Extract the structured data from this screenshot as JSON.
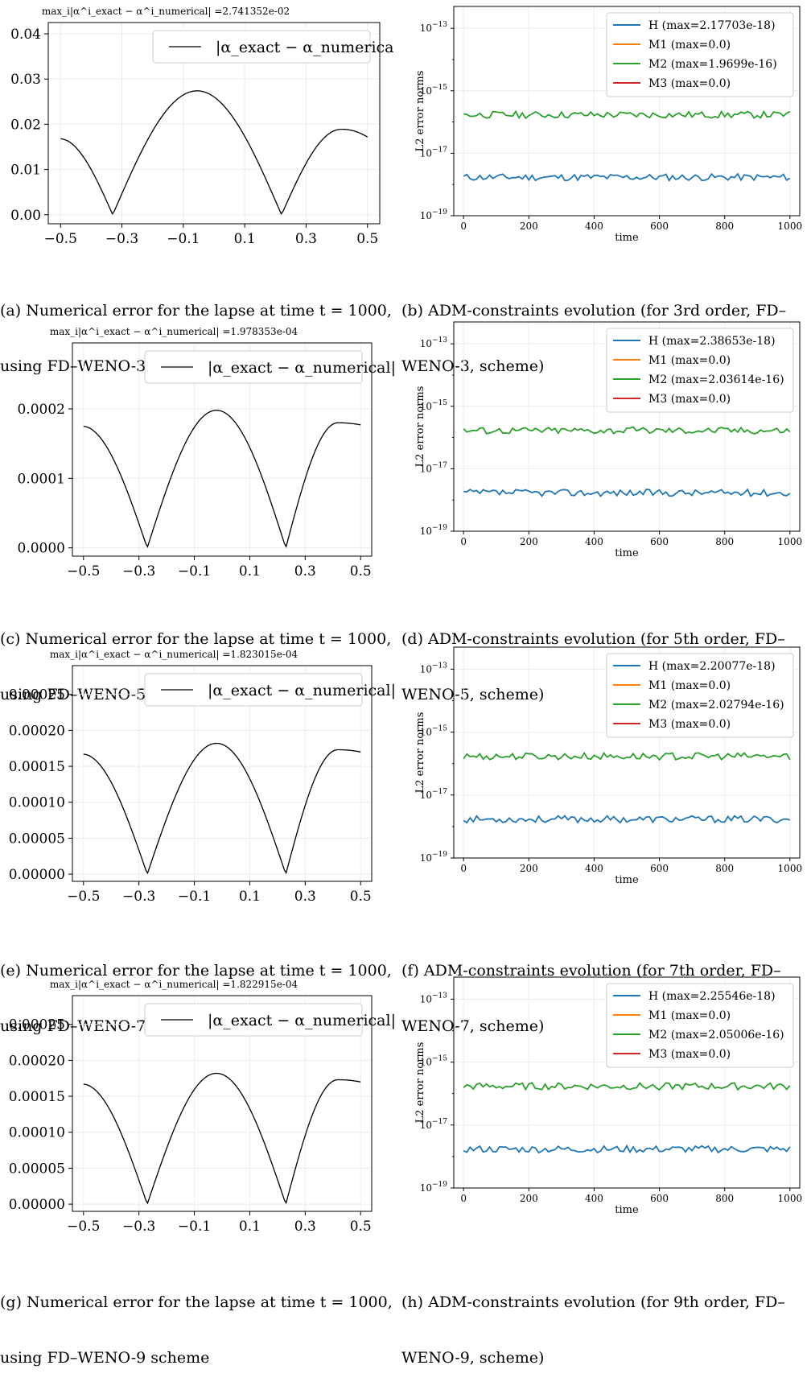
{
  "figures": [
    {
      "id": "a",
      "caption_lines": [
        "(a) Numerical error for the lapse at time t = 1000,",
        "using FD–WENO-3 scheme"
      ],
      "caption_right_lines": [
        "(b) ADM-constraints evolution (for 3rd order, FD–",
        "WENO-3, scheme)"
      ]
    },
    {
      "id": "c",
      "caption_lines": [
        "(c) Numerical error for the lapse at time t = 1000,",
        "using FD–WENO-5 scheme"
      ],
      "caption_right_lines": [
        "(d) ADM-constraints evolution (for 5th order, FD–",
        "WENO-5, scheme)"
      ]
    },
    {
      "id": "e",
      "caption_lines": [
        "(e) Numerical error for the lapse at time t = 1000,",
        "using FD–WENO-7 scheme"
      ],
      "caption_right_lines": [
        "(f) ADM-constraints evolution (for 7th order, FD–",
        "WENO-7, scheme)"
      ]
    },
    {
      "id": "g",
      "caption_lines": [
        "(g) Numerical error for the lapse at time t = 1000,",
        "using FD–WENO-9 scheme"
      ],
      "caption_right_lines": [
        "(h) ADM-constraints evolution (for 9th order, FD–",
        "WENO-9, scheme)"
      ]
    }
  ],
  "chart_data": [
    {
      "panel": "a",
      "type": "line",
      "title": "max_i|α^i_exact − α^i_numerical| =2.741352e-02",
      "legend": [
        "|α_exact − α_numerical|"
      ],
      "legend_position": "top-right",
      "xticks": [
        "−0.5",
        "−0.3",
        "−0.1",
        "0.1",
        "0.3",
        "0.5"
      ],
      "yticks": [
        "0.00",
        "0.01",
        "0.02",
        "0.03",
        "0.04"
      ],
      "xlim": [
        -0.54,
        0.54
      ],
      "ylim": [
        -0.002,
        0.0425
      ],
      "grid": true,
      "series": [
        {
          "x": [
            -0.5,
            -0.4,
            -0.33,
            -0.2,
            -0.05,
            0.1,
            0.22,
            0.35,
            0.44,
            0.5
          ],
          "y": [
            0.0168,
            0.0098,
            0.0,
            0.0174,
            0.0274,
            0.0174,
            0.0008,
            0.0148,
            0.0189,
            0.0172
          ]
        }
      ]
    },
    {
      "panel": "b",
      "type": "line",
      "xlabel": "time",
      "ylabel": "L2 error norms",
      "xticks": [
        "0",
        "200",
        "400",
        "600",
        "800",
        "1000"
      ],
      "yticks": [
        "10^-19",
        "10^-17",
        "10^-15",
        "10^-13"
      ],
      "ylog": true,
      "xlim": [
        -30,
        1030
      ],
      "ylim_exp": [
        -19,
        -12.3
      ],
      "grid": true,
      "legend_position": "top-right",
      "series": [
        {
          "name": "H (max=2.17703e-18)",
          "color": "#1f77b4",
          "value": 1.7e-18
        },
        {
          "name": "M1 (max=0.0)",
          "color": "#ff7f0e",
          "value": 0
        },
        {
          "name": "M2 (max=1.9699e-16)",
          "color": "#2ca02c",
          "value": 1.7e-16
        },
        {
          "name": "M3 (max=0.0)",
          "color": "#d62728",
          "value": 0
        }
      ]
    },
    {
      "panel": "c",
      "type": "line",
      "title": "max_i|α^i_exact − α^i_numerical| =1.978353e-04",
      "legend": [
        "|α_exact − α_numerical|"
      ],
      "legend_position": "top-right",
      "xticks": [
        "−0.5",
        "−0.3",
        "−0.1",
        "0.1",
        "0.3",
        "0.5"
      ],
      "yticks": [
        "0.0000",
        "0.0001",
        "0.0002"
      ],
      "xlim": [
        -0.54,
        0.54
      ],
      "ylim": [
        -1.2e-05,
        0.000295
      ],
      "grid": true,
      "series": [
        {
          "x": [
            -0.5,
            -0.4,
            -0.27,
            -0.13,
            0.0,
            0.12,
            0.23,
            0.35,
            0.45,
            0.5
          ],
          "y": [
            0.000175,
            0.000115,
            2.5e-06,
            0.00014,
            0.000198,
            0.00012,
            5e-06,
            0.00014,
            0.00018,
            0.000177
          ]
        }
      ]
    },
    {
      "panel": "d",
      "type": "line",
      "xlabel": "time",
      "ylabel": "L2 error norms",
      "xticks": [
        "0",
        "200",
        "400",
        "600",
        "800",
        "1000"
      ],
      "yticks": [
        "10^-19",
        "10^-17",
        "10^-15",
        "10^-13"
      ],
      "ylog": true,
      "xlim": [
        -30,
        1030
      ],
      "ylim_exp": [
        -19,
        -12.3
      ],
      "grid": true,
      "legend_position": "top-right",
      "series": [
        {
          "name": "H (max=2.38653e-18)",
          "color": "#1f77b4",
          "value": 1.7e-18
        },
        {
          "name": "M1 (max=0.0)",
          "color": "#ff7f0e",
          "value": 0
        },
        {
          "name": "M2 (max=2.03614e-16)",
          "color": "#2ca02c",
          "value": 1.7e-16
        },
        {
          "name": "M3 (max=0.0)",
          "color": "#d62728",
          "value": 0
        }
      ]
    },
    {
      "panel": "e",
      "type": "line",
      "title": "max_i|α^i_exact − α^i_numerical| =1.823015e-04",
      "legend": [
        "|α_exact − α_numerical|"
      ],
      "legend_position": "top-right",
      "xticks": [
        "−0.5",
        "−0.3",
        "−0.1",
        "0.1",
        "0.3",
        "0.5"
      ],
      "yticks": [
        "0.00000",
        "0.00005",
        "0.00010",
        "0.00015",
        "0.00020",
        "0.00025"
      ],
      "xlim": [
        -0.54,
        0.54
      ],
      "ylim": [
        -1e-05,
        0.00029
      ],
      "grid": true,
      "series": [
        {
          "x": [
            -0.5,
            -0.4,
            -0.27,
            -0.13,
            0.0,
            0.12,
            0.23,
            0.35,
            0.45,
            0.5
          ],
          "y": [
            0.000167,
            0.000108,
            3e-06,
            0.00013,
            0.000182,
            0.00011,
            4e-06,
            0.00013,
            0.000173,
            0.00017
          ]
        }
      ]
    },
    {
      "panel": "f",
      "type": "line",
      "xlabel": "time",
      "ylabel": "L2 error norms",
      "xticks": [
        "0",
        "200",
        "400",
        "600",
        "800",
        "1000"
      ],
      "yticks": [
        "10^-19",
        "10^-17",
        "10^-15",
        "10^-13"
      ],
      "ylog": true,
      "xlim": [
        -30,
        1030
      ],
      "ylim_exp": [
        -19,
        -12.3
      ],
      "grid": true,
      "legend_position": "top-right",
      "series": [
        {
          "name": "H (max=2.20077e-18)",
          "color": "#1f77b4",
          "value": 1.7e-18
        },
        {
          "name": "M1 (max=0.0)",
          "color": "#ff7f0e",
          "value": 0
        },
        {
          "name": "M2 (max=2.02794e-16)",
          "color": "#2ca02c",
          "value": 1.7e-16
        },
        {
          "name": "M3 (max=0.0)",
          "color": "#d62728",
          "value": 0
        }
      ]
    },
    {
      "panel": "g",
      "type": "line",
      "title": "max_i|α^i_exact − α^i_numerical| =1.822915e-04",
      "legend": [
        "|α_exact − α_numerical|"
      ],
      "legend_position": "top-right",
      "xticks": [
        "−0.5",
        "−0.3",
        "−0.1",
        "0.1",
        "0.3",
        "0.5"
      ],
      "yticks": [
        "0.00000",
        "0.00005",
        "0.00010",
        "0.00015",
        "0.00020",
        "0.00025"
      ],
      "xlim": [
        -0.54,
        0.54
      ],
      "ylim": [
        -1e-05,
        0.00029
      ],
      "grid": true,
      "series": [
        {
          "x": [
            -0.5,
            -0.4,
            -0.27,
            -0.13,
            0.0,
            0.12,
            0.23,
            0.35,
            0.45,
            0.5
          ],
          "y": [
            0.000167,
            0.000108,
            3e-06,
            0.00013,
            0.000182,
            0.00011,
            4e-06,
            0.00013,
            0.000173,
            0.00017
          ]
        }
      ]
    },
    {
      "panel": "h",
      "type": "line",
      "xlabel": "time",
      "ylabel": "L2 error norms",
      "xticks": [
        "0",
        "200",
        "400",
        "600",
        "800",
        "1000"
      ],
      "yticks": [
        "10^-19",
        "10^-17",
        "10^-15",
        "10^-13"
      ],
      "ylog": true,
      "xlim": [
        -30,
        1030
      ],
      "ylim_exp": [
        -19,
        -12.3
      ],
      "grid": true,
      "legend_position": "top-right",
      "series": [
        {
          "name": "H (max=2.25546e-18)",
          "color": "#1f77b4",
          "value": 1.7e-18
        },
        {
          "name": "M1 (max=0.0)",
          "color": "#ff7f0e",
          "value": 0
        },
        {
          "name": "M2 (max=2.05006e-16)",
          "color": "#2ca02c",
          "value": 1.7e-16
        },
        {
          "name": "M3 (max=0.0)",
          "color": "#d62728",
          "value": 0
        }
      ]
    }
  ]
}
